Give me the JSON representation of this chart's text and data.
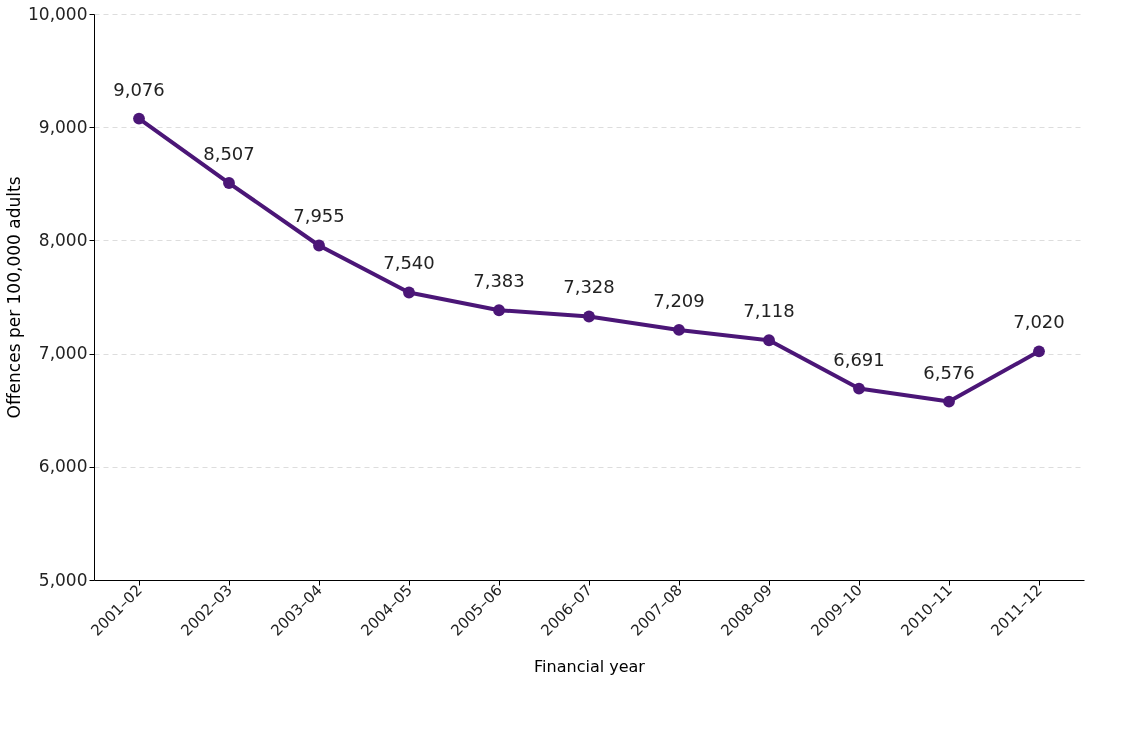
{
  "chart_data": {
    "type": "line",
    "xlabel": "Financial year",
    "ylabel": "Offences per 100,000 adults",
    "categories": [
      "2001–02",
      "2002–03",
      "2003–04",
      "2004–05",
      "2005–06",
      "2006–07",
      "2007–08",
      "2008–09",
      "2009–10",
      "2010–11",
      "2011–12"
    ],
    "series": [
      {
        "color": "#4b1677",
        "values": [
          9076,
          8507,
          7955,
          7540,
          7383,
          7328,
          7209,
          7118,
          6691,
          6576,
          7020
        ],
        "value_labels": [
          "9,076",
          "8,507",
          "7,955",
          "7,540",
          "7,383",
          "7,328",
          "7,209",
          "7,118",
          "6,691",
          "6,576",
          "7,020"
        ]
      }
    ],
    "ylim": [
      5000,
      10000
    ],
    "yticks": [
      {
        "value": 5000,
        "label": "5,000"
      },
      {
        "value": 6000,
        "label": "6,000"
      },
      {
        "value": 7000,
        "label": "7,000"
      },
      {
        "value": 8000,
        "label": "8,000"
      },
      {
        "value": 9000,
        "label": "9,000"
      },
      {
        "value": 10000,
        "label": "10,000"
      }
    ],
    "grid": "y",
    "marker": "circle",
    "line_style": "solid",
    "legend": false
  }
}
